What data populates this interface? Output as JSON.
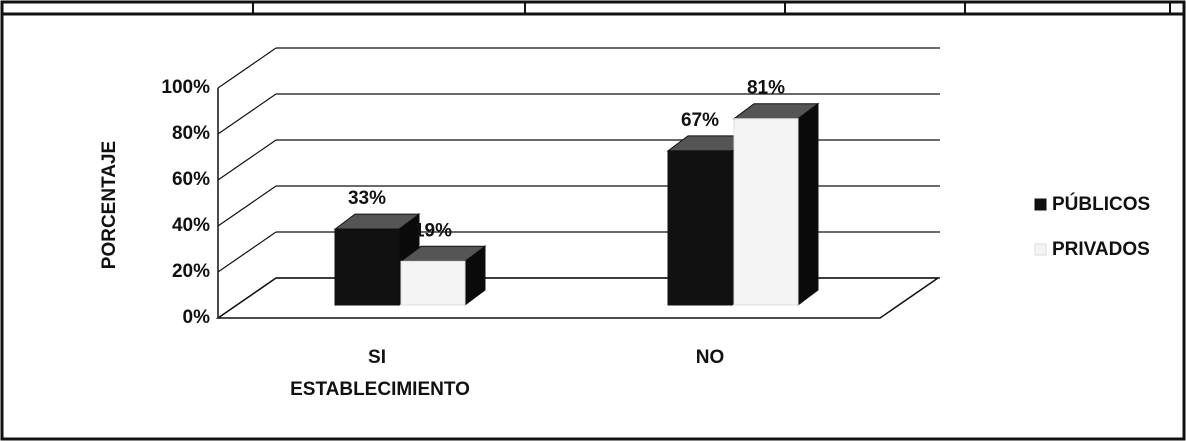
{
  "chart_data": {
    "type": "bar3d",
    "categories": [
      "SI",
      "NO"
    ],
    "series": [
      {
        "name": "PÚBLICOS",
        "color": "#111111",
        "values": [
          33,
          67
        ],
        "value_labels": [
          "33%",
          "67%"
        ]
      },
      {
        "name": "PRIVADOS",
        "color": "#f4f4f4",
        "values": [
          19,
          81
        ],
        "value_labels": [
          "19%",
          "81%"
        ]
      }
    ],
    "xlabel": "ESTABLECIMIENTO",
    "ylabel": "PORCENTAJE",
    "ylim": [
      0,
      100
    ],
    "yticks": [
      {
        "value": 0,
        "label": "0%"
      },
      {
        "value": 20,
        "label": "20%"
      },
      {
        "value": 40,
        "label": "40%"
      },
      {
        "value": 60,
        "label": "60%"
      },
      {
        "value": 80,
        "label": "80%"
      },
      {
        "value": 100,
        "label": "100%"
      }
    ],
    "grid": true,
    "legend": "right"
  }
}
